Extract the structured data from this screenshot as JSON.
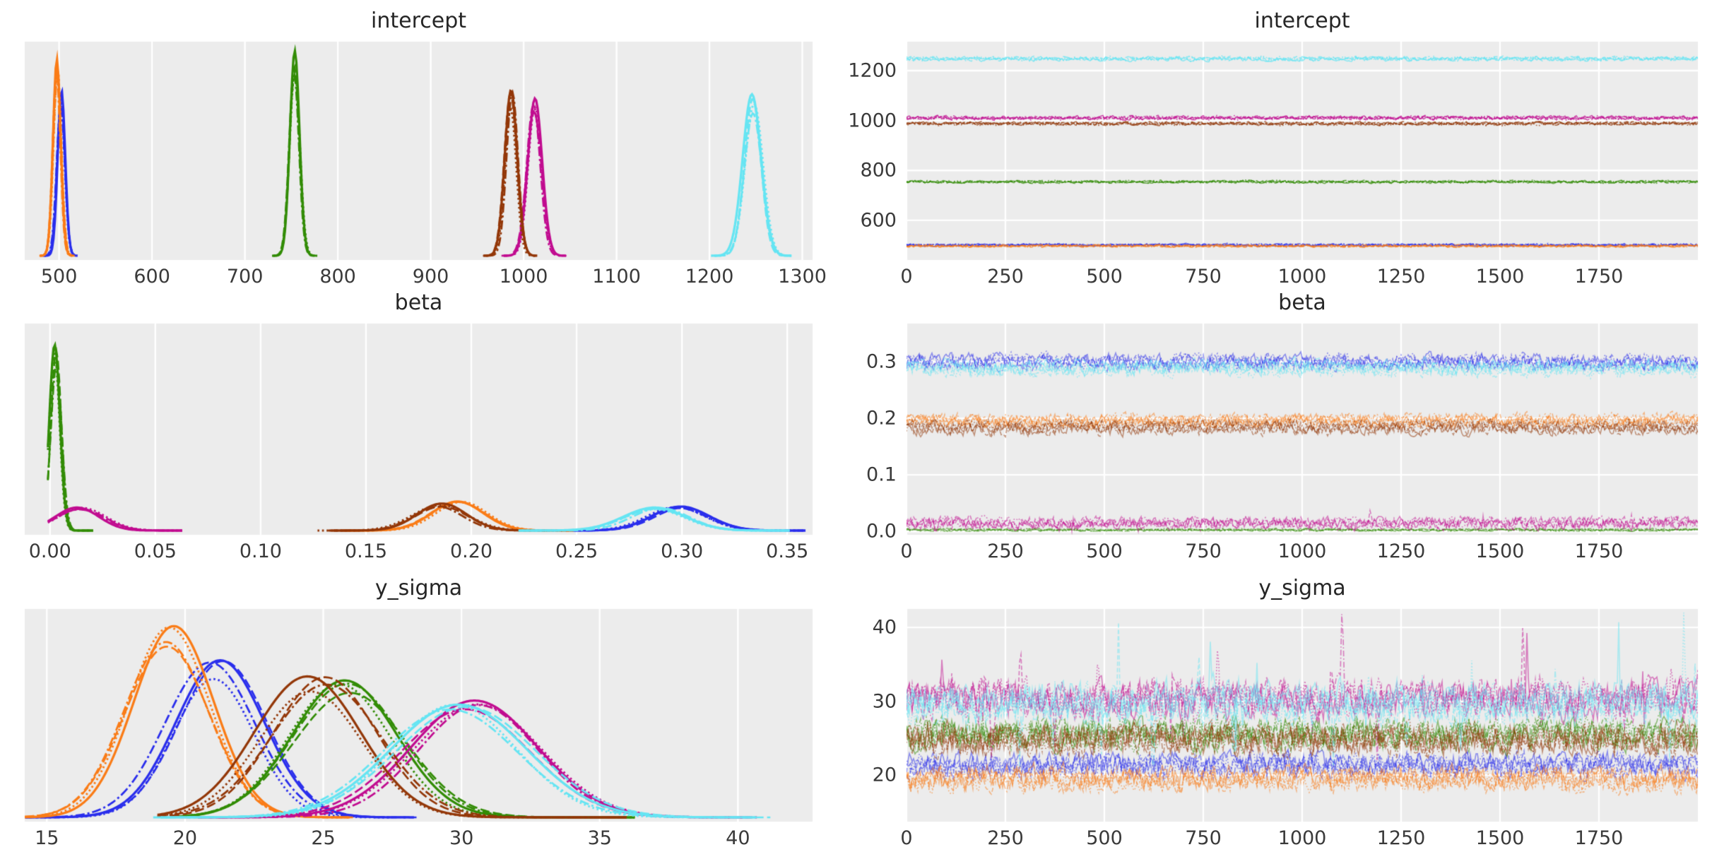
{
  "app": {
    "type": "arviz-trace-plot",
    "variables_shown": [
      "intercept",
      "beta",
      "y_sigma"
    ]
  },
  "style": {
    "background": "#ffffff",
    "panel_bg": "#ececec",
    "grid_color": "#ffffff",
    "tick_color": "#3a3a3a",
    "title_color": "#262626",
    "palette": {
      "blue": "#2a2eec",
      "orange": "#fa7c17",
      "green": "#328c06",
      "magenta": "#c10c90",
      "brown": "#933708",
      "cyan": "#65e5f3"
    }
  },
  "chart_data": [
    {
      "variable": "intercept",
      "kde": {
        "type": "area",
        "title": "intercept",
        "xlim": [
          463,
          1311
        ],
        "xticks": [
          500,
          600,
          700,
          800,
          900,
          1000,
          1100,
          1200,
          1300
        ],
        "xtick_labels": [
          "500",
          "600",
          "700",
          "800",
          "900",
          "1000",
          "1100",
          "1200",
          "1300"
        ],
        "grid": "vertical",
        "groups": [
          {
            "name": "blue",
            "color": "#2a2eec",
            "mean": 502,
            "sd": 4.2,
            "peak": 0.8
          },
          {
            "name": "orange",
            "color": "#fa7c17",
            "mean": 497.5,
            "sd": 4.2,
            "peak": 0.95
          },
          {
            "name": "green",
            "color": "#328c06",
            "mean": 754,
            "sd": 5.5,
            "peak": 0.99
          },
          {
            "name": "magenta",
            "color": "#c10c90",
            "mean": 1011,
            "sd": 7.5,
            "peak": 0.76
          },
          {
            "name": "brown",
            "color": "#933708",
            "mean": 987,
            "sd": 6.5,
            "peak": 0.8
          },
          {
            "name": "cyan",
            "color": "#65e5f3",
            "mean": 1247,
            "sd": 9.5,
            "peak": 0.78
          }
        ]
      },
      "trace": {
        "type": "line",
        "title": "intercept",
        "xlim": [
          0,
          2000
        ],
        "xticks": [
          0,
          250,
          500,
          750,
          1000,
          1250,
          1500,
          1750
        ],
        "xtick_labels": [
          "0",
          "250",
          "500",
          "750",
          "1000",
          "1250",
          "1500",
          "1750"
        ],
        "ylim": [
          441,
          1316
        ],
        "yticks": [
          600,
          800,
          1000,
          1200
        ],
        "ytick_labels": [
          "600",
          "800",
          "1000",
          "1200"
        ],
        "grid": "both",
        "alpha": 0.7,
        "series": [
          {
            "name": "blue",
            "color": "#2a2eec",
            "mean": 502,
            "noise_sd": 4.5
          },
          {
            "name": "orange",
            "color": "#fa7c17",
            "mean": 497.5,
            "noise_sd": 4.5
          },
          {
            "name": "green",
            "color": "#328c06",
            "mean": 754,
            "noise_sd": 5
          },
          {
            "name": "magenta",
            "color": "#c10c90",
            "mean": 1011,
            "noise_sd": 7
          },
          {
            "name": "brown",
            "color": "#933708",
            "mean": 987,
            "noise_sd": 6
          },
          {
            "name": "cyan",
            "color": "#65e5f3",
            "mean": 1247,
            "noise_sd": 8
          }
        ]
      }
    },
    {
      "variable": "beta",
      "kde": {
        "type": "area",
        "title": "beta",
        "xlim": [
          -0.012,
          0.362
        ],
        "xticks": [
          0.0,
          0.05,
          0.1,
          0.15,
          0.2,
          0.25,
          0.3,
          0.35
        ],
        "xtick_labels": [
          "0.00",
          "0.05",
          "0.10",
          "0.15",
          "0.20",
          "0.25",
          "0.30",
          "0.35"
        ],
        "grid": "vertical",
        "groups": [
          {
            "name": "blue",
            "color": "#2a2eec",
            "mean": 0.299,
            "sd": 0.0135,
            "peak": 0.12
          },
          {
            "name": "orange",
            "color": "#fa7c17",
            "mean": 0.195,
            "sd": 0.012,
            "peak": 0.145
          },
          {
            "name": "green",
            "color": "#328c06",
            "mean": 0.0025,
            "sd": 0.0025,
            "peak": 0.93,
            "support": [
              -0.001,
              0.021
            ]
          },
          {
            "name": "magenta",
            "color": "#c10c90",
            "mean": 0.014,
            "sd": 0.011,
            "peak": 0.115,
            "support": [
              -0.001,
              0.063
            ]
          },
          {
            "name": "brown",
            "color": "#933708",
            "mean": 0.184,
            "sd": 0.0125,
            "peak": 0.135
          },
          {
            "name": "cyan",
            "color": "#65e5f3",
            "mean": 0.288,
            "sd": 0.014,
            "peak": 0.115
          }
        ]
      },
      "trace": {
        "type": "line",
        "title": "beta",
        "xlim": [
          0,
          2000
        ],
        "xticks": [
          0,
          250,
          500,
          750,
          1000,
          1250,
          1500,
          1750
        ],
        "xtick_labels": [
          "0",
          "250",
          "500",
          "750",
          "1000",
          "1250",
          "1500",
          "1750"
        ],
        "ylim": [
          -0.006,
          0.3675
        ],
        "yticks": [
          0.0,
          0.1,
          0.2,
          0.3
        ],
        "ytick_labels": [
          "0.0",
          "0.1",
          "0.2",
          "0.3"
        ],
        "grid": "both",
        "alpha": 0.5,
        "series": [
          {
            "name": "blue",
            "color": "#2a2eec",
            "mean": 0.299,
            "noise_sd": 0.013
          },
          {
            "name": "orange",
            "color": "#fa7c17",
            "mean": 0.195,
            "noise_sd": 0.011
          },
          {
            "name": "green",
            "color": "#328c06",
            "mean": 0.0025,
            "noise_sd": 0.0022,
            "clamp_min": 0.0002
          },
          {
            "name": "magenta",
            "color": "#c10c90",
            "mean": 0.016,
            "noise_sd": 0.01,
            "clamp_min": 0.0005,
            "spike": 0.01
          },
          {
            "name": "brown",
            "color": "#933708",
            "mean": 0.184,
            "noise_sd": 0.011
          },
          {
            "name": "cyan",
            "color": "#65e5f3",
            "mean": 0.288,
            "noise_sd": 0.013
          }
        ]
      }
    },
    {
      "variable": "y_sigma",
      "kde": {
        "type": "area",
        "title": "y_sigma",
        "xlim": [
          14.2,
          42.7
        ],
        "xticks": [
          15,
          20,
          25,
          30,
          35,
          40
        ],
        "xtick_labels": [
          "15",
          "20",
          "25",
          "30",
          "35",
          "40"
        ],
        "grid": "vertical",
        "groups": [
          {
            "name": "blue",
            "color": "#2a2eec",
            "mean": 21.2,
            "sd": 1.55,
            "peak": 0.78
          },
          {
            "name": "orange",
            "color": "#fa7c17",
            "mean": 19.4,
            "sd": 1.55,
            "peak": 0.95
          },
          {
            "name": "green",
            "color": "#328c06",
            "mean": 25.6,
            "sd": 1.95,
            "peak": 0.68,
            "support": [
              19.5,
              36.3
            ]
          },
          {
            "name": "magenta",
            "color": "#c10c90",
            "mean": 30.2,
            "sd": 2.3,
            "peak": 0.58
          },
          {
            "name": "brown",
            "color": "#933708",
            "mean": 24.8,
            "sd": 1.95,
            "peak": 0.7,
            "support": [
              19.0,
              36.0
            ]
          },
          {
            "name": "cyan",
            "color": "#65e5f3",
            "mean": 29.9,
            "sd": 2.35,
            "peak": 0.56
          }
        ]
      },
      "trace": {
        "type": "line",
        "title": "y_sigma",
        "xlim": [
          0,
          2000
        ],
        "xticks": [
          0,
          250,
          500,
          750,
          1000,
          1250,
          1500,
          1750
        ],
        "xtick_labels": [
          "0",
          "250",
          "500",
          "750",
          "1000",
          "1250",
          "1500",
          "1750"
        ],
        "ylim": [
          13.7,
          42.5
        ],
        "yticks": [
          20,
          30,
          40
        ],
        "ytick_labels": [
          "20",
          "30",
          "40"
        ],
        "grid": "both",
        "alpha": 0.5,
        "series": [
          {
            "name": "blue",
            "color": "#2a2eec",
            "mean": 21.2,
            "noise_sd": 1.5
          },
          {
            "name": "orange",
            "color": "#fa7c17",
            "mean": 19.4,
            "noise_sd": 1.5
          },
          {
            "name": "green",
            "color": "#328c06",
            "mean": 25.6,
            "noise_sd": 1.9
          },
          {
            "name": "magenta",
            "color": "#c10c90",
            "mean": 30.2,
            "noise_sd": 2.3,
            "spike": 0.012
          },
          {
            "name": "brown",
            "color": "#933708",
            "mean": 24.8,
            "noise_sd": 1.9
          },
          {
            "name": "cyan",
            "color": "#65e5f3",
            "mean": 29.9,
            "noise_sd": 2.3,
            "spike": 0.012
          }
        ]
      }
    }
  ]
}
